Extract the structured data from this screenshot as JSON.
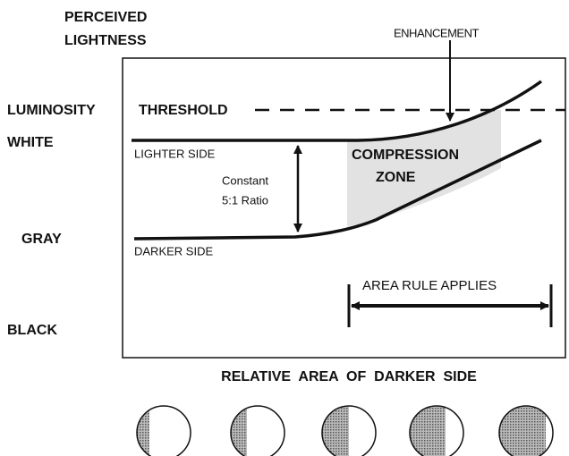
{
  "axis": {
    "title_line1": "PERCEIVED",
    "title_line2": "LIGHTNESS"
  },
  "levels": {
    "threshold_left": "LUMINOSITY",
    "threshold_right": "THRESHOLD",
    "white": "WHITE",
    "gray": "GRAY",
    "black": "BLACK"
  },
  "annotations": {
    "enhancement": "ENHANCEMENT",
    "lighter_side": "LIGHTER SIDE",
    "darker_side": "DARKER SIDE",
    "ratio_line1": "Constant",
    "ratio_line2": "5:1 Ratio",
    "zone_line1": "COMPRESSION",
    "zone_line2": "ZONE",
    "area_rule": "AREA RULE APPLIES"
  },
  "x_axis_title": "RELATIVE  AREA  OF  DARKER  SIDE"
}
